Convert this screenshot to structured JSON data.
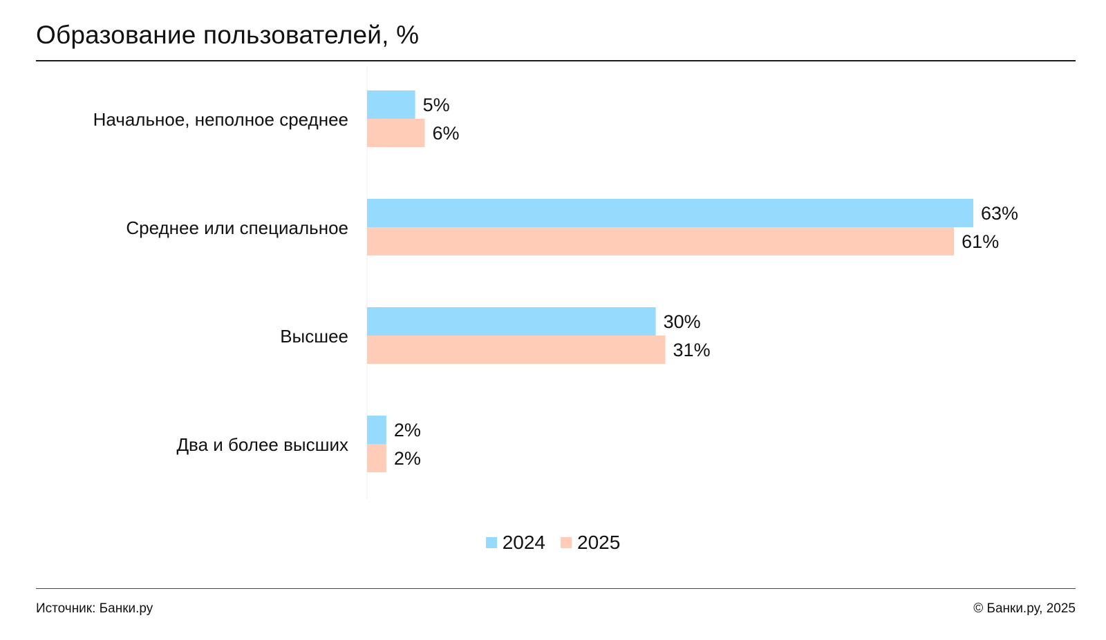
{
  "title": "Образование пользователей, %",
  "footer": {
    "source": "Источник: Банки.ру",
    "copyright": "© Банки.ру, 2025"
  },
  "colors": {
    "series_2024": "#96dbfd",
    "series_2025": "#ffcdb7",
    "axis": "#eeeeee"
  },
  "chart_data": {
    "type": "bar",
    "orientation": "horizontal",
    "title": "Образование пользователей, %",
    "categories": [
      "Начальное, неполное среднее",
      "Среднее или специальное",
      "Высшее",
      "Два и более высших"
    ],
    "series": [
      {
        "name": "2024",
        "values": [
          5,
          63,
          30,
          2
        ]
      },
      {
        "name": "2025",
        "values": [
          6,
          61,
          31,
          2
        ]
      }
    ],
    "value_labels": [
      [
        "5%",
        "63%",
        "30%",
        "2%"
      ],
      [
        "6%",
        "61%",
        "31%",
        "2%"
      ]
    ],
    "unit": "%",
    "xlim": [
      0,
      63
    ],
    "grid": false,
    "legend_position": "bottom-center"
  }
}
